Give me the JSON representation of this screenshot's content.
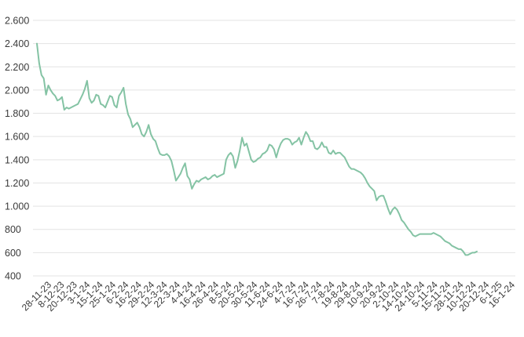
{
  "chart_data": {
    "type": "line",
    "title": "",
    "xlabel": "",
    "ylabel": "",
    "ylim": [
      400,
      2600
    ],
    "grid": true,
    "legend": "none",
    "colors": {
      "line": "#84c3a4",
      "grid": "#e3e3e3",
      "text": "#3a3a3a"
    },
    "y_tick_labels": [
      "400",
      "600",
      "800",
      "1.000",
      "1.200",
      "1.400",
      "1.600",
      "1.800",
      "2.000",
      "2.200",
      "2.400",
      "2.600"
    ],
    "x_tick_labels": [
      "28-11-23",
      "8-12-23",
      "20-12-23",
      "3-1-24",
      "15-1-24",
      "25-1-24",
      "6-2-24",
      "16-2-24",
      "29-2-24",
      "12-3-24",
      "22-3-24",
      "4-4-24",
      "16-4-24",
      "26-4-24",
      "8-5-24",
      "20-5-24",
      "30-5-24",
      "11-6-24",
      "24-6-24",
      "4-7-24",
      "16-7-24",
      "26-7-24",
      "7-8-24",
      "19-8-24",
      "29-8-24",
      "10-9-24",
      "20-9-24",
      "2-10-24",
      "14-10-24",
      "24-10-24",
      "5-11-24",
      "15-11-24",
      "28-11-24",
      "10-12-24",
      "20-12-24",
      "6-1-25",
      "16-1-24"
    ],
    "series": [
      {
        "values": [
          2400,
          2230,
          2130,
          2100,
          1960,
          2040,
          2000,
          1970,
          1950,
          1910,
          1920,
          1940,
          1830,
          1850,
          1840,
          1850,
          1860,
          1870,
          1880,
          1920,
          1960,
          2010,
          2080,
          1930,
          1890,
          1910,
          1960,
          1950,
          1880,
          1870,
          1850,
          1900,
          1950,
          1940,
          1870,
          1850,
          1950,
          1980,
          2020,
          1880,
          1790,
          1750,
          1680,
          1700,
          1720,
          1680,
          1620,
          1600,
          1640,
          1700,
          1620,
          1580,
          1560,
          1500,
          1450,
          1440,
          1440,
          1450,
          1430,
          1390,
          1310,
          1220,
          1250,
          1280,
          1330,
          1370,
          1260,
          1230,
          1150,
          1190,
          1220,
          1210,
          1230,
          1240,
          1250,
          1230,
          1240,
          1260,
          1270,
          1250,
          1260,
          1270,
          1280,
          1400,
          1440,
          1460,
          1430,
          1330,
          1390,
          1480,
          1590,
          1520,
          1540,
          1470,
          1400,
          1380,
          1390,
          1410,
          1420,
          1450,
          1460,
          1480,
          1530,
          1520,
          1490,
          1420,
          1490,
          1540,
          1570,
          1580,
          1580,
          1570,
          1530,
          1550,
          1560,
          1590,
          1530,
          1590,
          1640,
          1610,
          1560,
          1560,
          1500,
          1490,
          1510,
          1550,
          1510,
          1510,
          1460,
          1450,
          1480,
          1450,
          1460,
          1460,
          1440,
          1420,
          1380,
          1340,
          1320,
          1320,
          1310,
          1300,
          1290,
          1270,
          1240,
          1200,
          1170,
          1150,
          1130,
          1050,
          1080,
          1090,
          1090,
          1040,
          980,
          930,
          970,
          990,
          970,
          930,
          880,
          860,
          830,
          800,
          780,
          750,
          740,
          750,
          760,
          760,
          760,
          760,
          760,
          760,
          770,
          760,
          750,
          740,
          720,
          700,
          690,
          680,
          660,
          650,
          640,
          630,
          630,
          610,
          580,
          580,
          590,
          600,
          600,
          610
        ]
      }
    ]
  }
}
